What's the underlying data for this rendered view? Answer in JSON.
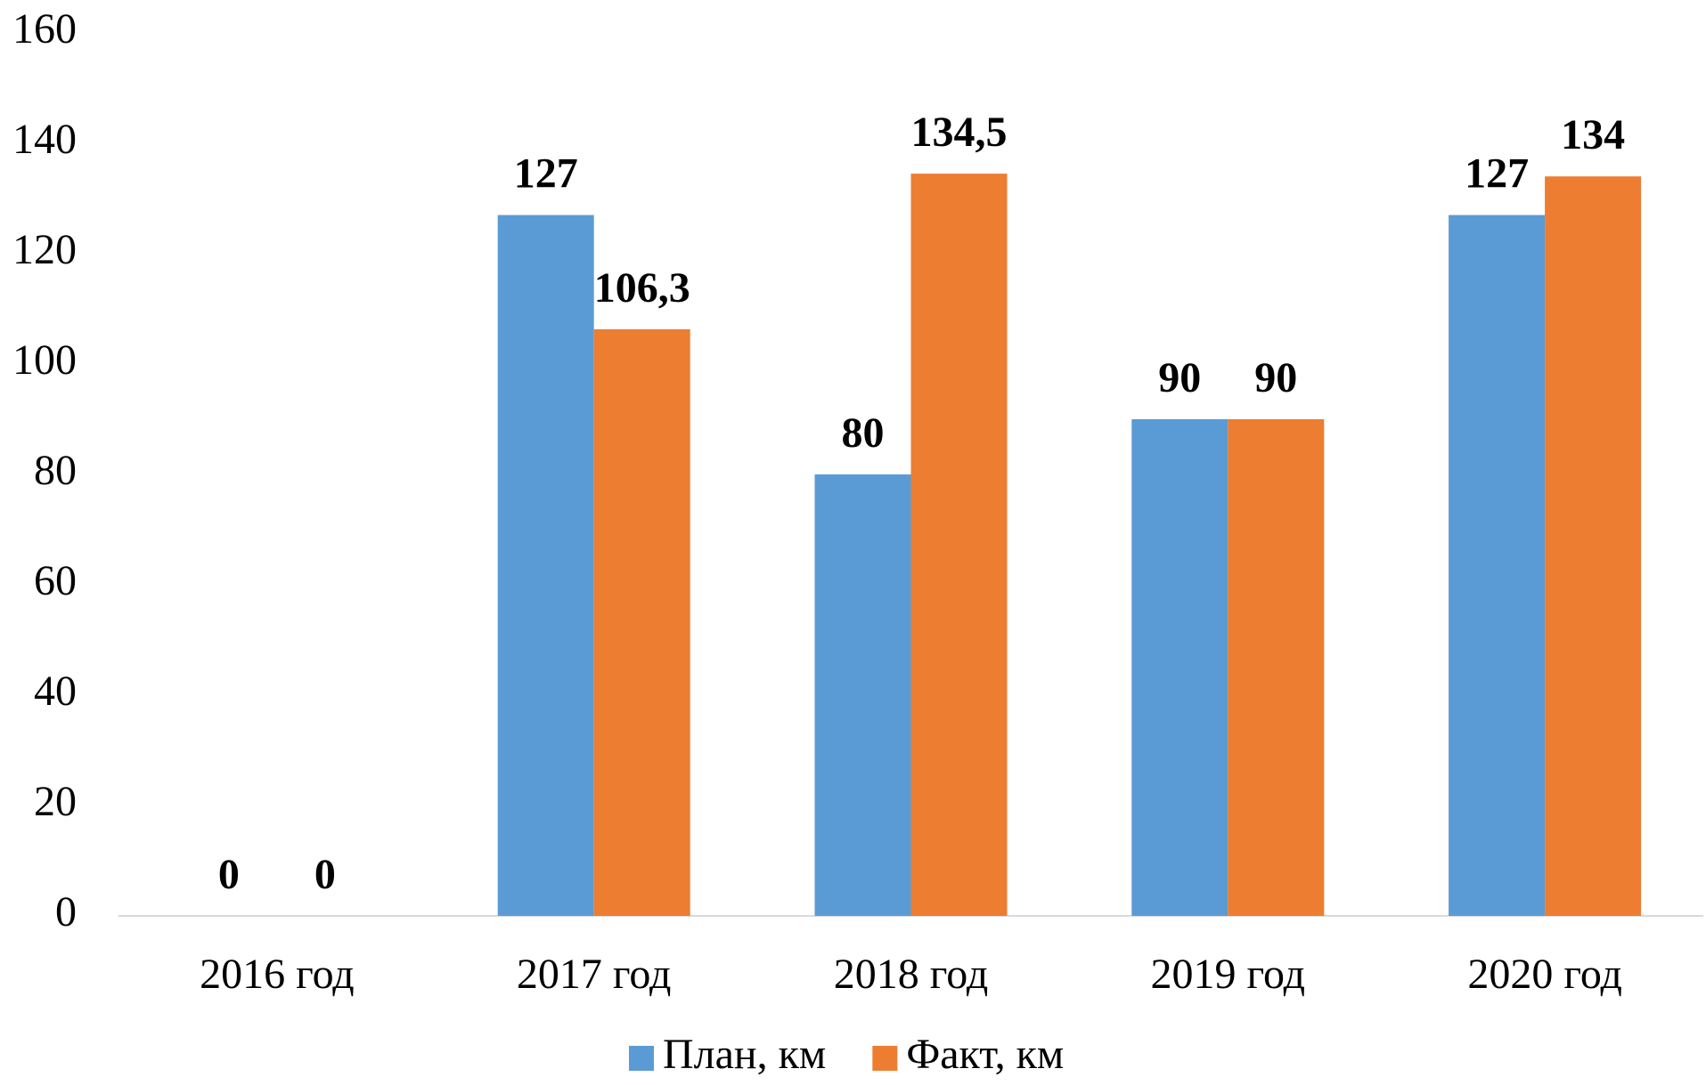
{
  "chart_data": {
    "type": "bar",
    "categories": [
      "2016 год",
      "2017 год",
      "2018 год",
      "2019 год",
      "2020 год"
    ],
    "series": [
      {
        "name": "План, км",
        "color": "#5b9bd5",
        "values": [
          0,
          127,
          80,
          90,
          127
        ],
        "value_labels": [
          "0",
          "127",
          "80",
          "90",
          "127"
        ]
      },
      {
        "name": "Факт, км",
        "color": "#ed7d31",
        "values": [
          0,
          106.3,
          134.5,
          90,
          134
        ],
        "value_labels": [
          "0",
          "106,3",
          "134,5",
          "90",
          "134"
        ]
      }
    ],
    "ylim": [
      0,
      160
    ],
    "yticks": [
      0,
      20,
      40,
      60,
      80,
      100,
      120,
      140,
      160
    ],
    "grid": false,
    "legend": "bottom"
  }
}
